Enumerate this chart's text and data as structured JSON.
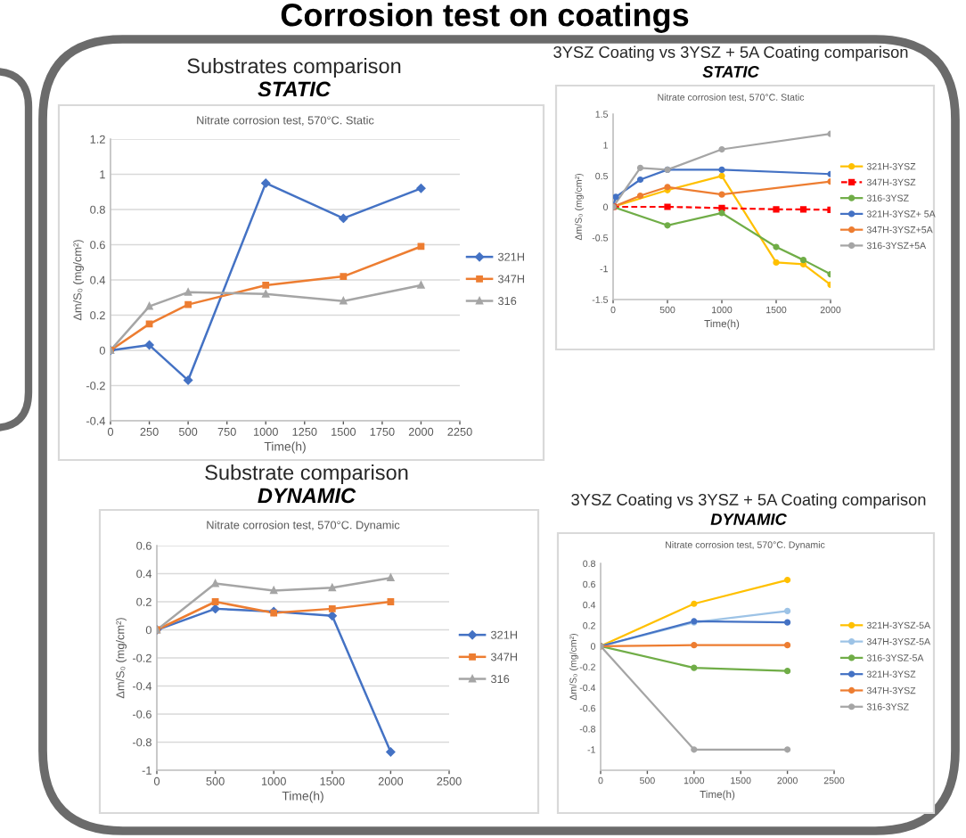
{
  "chart_data": [
    {
      "type": "other",
      "title": "Corrosion test on coatings"
    },
    {
      "type": "line",
      "title": "Substrates comparison",
      "subtitle": "STATIC",
      "annotations": [
        "Nitrate corrosion test, 570°C. Static"
      ],
      "xlabel": "Time(h)",
      "ylabel": "Δm/S₀ (mg/cm²)",
      "x": [
        0,
        250,
        500,
        1000,
        1500,
        2000
      ],
      "series": [
        {
          "name": "321H",
          "color": "#4472c4",
          "marker": "diamond",
          "values": [
            0,
            0.03,
            -0.17,
            0.95,
            0.75,
            0.92
          ]
        },
        {
          "name": "347H",
          "color": "#ed7d31",
          "marker": "square",
          "values": [
            0,
            0.15,
            0.26,
            0.37,
            0.42,
            0.59
          ]
        },
        {
          "name": "316",
          "color": "#a5a5a5",
          "marker": "triangle",
          "values": [
            0,
            0.25,
            0.33,
            0.32,
            0.28,
            0.37
          ]
        }
      ],
      "xlim": [
        0,
        2250
      ],
      "xticks": [
        0,
        250,
        500,
        750,
        1000,
        1250,
        1500,
        1750,
        2000,
        2250
      ],
      "ylim": [
        -0.4,
        1.2
      ],
      "yticks": [
        -0.4,
        -0.2,
        0,
        0.2,
        0.4,
        0.6,
        0.8,
        1,
        1.2
      ],
      "grid": "y",
      "legend": "right"
    },
    {
      "type": "line",
      "title": "3YSZ Coating vs 3YSZ + 5A Coating comparison",
      "subtitle": "STATIC",
      "annotations": [
        "Nitrate corrosion test, 570°C. Static"
      ],
      "xlabel": "Time(h)",
      "ylabel": "Δm/S₀ (mg/cm²)",
      "series": [
        {
          "name": "321H-3YSZ",
          "color": "#ffc000",
          "marker": "circle",
          "x": [
            0,
            500,
            1000,
            1500,
            1750,
            2000
          ],
          "values": [
            0,
            0.27,
            0.5,
            -0.9,
            -0.93,
            -1.26
          ]
        },
        {
          "name": "347H-3YSZ",
          "color": "#ff0000",
          "marker": "square",
          "line_style": "dashed",
          "x": [
            0,
            500,
            1000,
            1500,
            1750,
            2000
          ],
          "values": [
            0,
            0,
            -0.02,
            -0.04,
            -0.04,
            -0.05
          ]
        },
        {
          "name": "316-3YSZ",
          "color": "#70ad47",
          "marker": "circle",
          "x": [
            0,
            500,
            1000,
            1500,
            1750,
            2000
          ],
          "values": [
            0,
            -0.3,
            -0.1,
            -0.65,
            -0.86,
            -1.09
          ]
        },
        {
          "name": "321H-3YSZ+ 5A",
          "color": "#4472c4",
          "marker": "circle",
          "x": [
            0,
            25,
            250,
            500,
            1000,
            2000
          ],
          "values": [
            0,
            0.16,
            0.44,
            0.6,
            0.6,
            0.53
          ]
        },
        {
          "name": "347H-3YSZ+5A",
          "color": "#ed7d31",
          "marker": "circle",
          "x": [
            0,
            250,
            500,
            1000,
            2000
          ],
          "values": [
            0,
            0.18,
            0.32,
            0.2,
            0.41
          ]
        },
        {
          "name": "316-3YSZ+5A",
          "color": "#a5a5a5",
          "marker": "circle",
          "x": [
            0,
            250,
            500,
            1000,
            2000
          ],
          "values": [
            0,
            0.63,
            0.6,
            0.93,
            1.18
          ]
        }
      ],
      "xlim": [
        0,
        2000
      ],
      "xticks": [
        0,
        500,
        1000,
        1500,
        2000
      ],
      "ylim": [
        -1.5,
        1.5
      ],
      "yticks": [
        -1.5,
        -1,
        -0.5,
        0,
        0.5,
        1,
        1.5
      ],
      "legend": "right"
    },
    {
      "type": "line",
      "title": "Substrate comparison",
      "subtitle": "DYNAMIC",
      "annotations": [
        "Nitrate corrosion test, 570°C. Dynamic"
      ],
      "xlabel": "Time(h)",
      "ylabel": "Δm/S₀ (mg/cm²)",
      "x": [
        0,
        500,
        1000,
        1500,
        2000
      ],
      "series": [
        {
          "name": "321H",
          "color": "#4472c4",
          "marker": "diamond",
          "values": [
            0,
            0.15,
            0.13,
            0.1,
            -0.87
          ]
        },
        {
          "name": "347H",
          "color": "#ed7d31",
          "marker": "square",
          "values": [
            0,
            0.2,
            0.12,
            0.15,
            0.2
          ]
        },
        {
          "name": "316",
          "color": "#a5a5a5",
          "marker": "triangle",
          "values": [
            0,
            0.33,
            0.28,
            0.3,
            0.37
          ]
        }
      ],
      "xlim": [
        0,
        2500
      ],
      "xticks": [
        0,
        500,
        1000,
        1500,
        2000,
        2500
      ],
      "ylim": [
        -1,
        0.6
      ],
      "yticks": [
        -1,
        -0.8,
        -0.6,
        -0.4,
        -0.2,
        0,
        0.2,
        0.4,
        0.6
      ],
      "grid": "y",
      "legend": "right"
    },
    {
      "type": "line",
      "title": "3YSZ Coating vs 3YSZ + 5A Coating comparison",
      "subtitle": "DYNAMIC",
      "annotations": [
        "Nitrate corrosion test, 570°C. Dynamic"
      ],
      "xlabel": "Time(h)",
      "ylabel": "Δm/S₀ (mg/cm²)",
      "x": [
        0,
        1000,
        2000
      ],
      "series": [
        {
          "name": "321H-3YSZ-5A",
          "color": "#ffc000",
          "marker": "circle",
          "values": [
            0,
            0.41,
            0.64
          ]
        },
        {
          "name": "347H-3YSZ-5A",
          "color": "#9dc3e6",
          "marker": "circle",
          "values": [
            0,
            0.23,
            0.34
          ]
        },
        {
          "name": "316-3YSZ-5A",
          "color": "#70ad47",
          "marker": "circle",
          "values": [
            0,
            -0.21,
            -0.24
          ]
        },
        {
          "name": "321H-3YSZ",
          "color": "#4472c4",
          "marker": "circle",
          "values": [
            0,
            0.24,
            0.23
          ]
        },
        {
          "name": "347H-3YSZ",
          "color": "#ed7d31",
          "marker": "circle",
          "values": [
            0,
            0.01,
            0.01
          ]
        },
        {
          "name": "316-3YSZ",
          "color": "#a5a5a5",
          "marker": "circle",
          "values": [
            0,
            -1.0,
            -1.0
          ]
        }
      ],
      "xlim": [
        0,
        2500
      ],
      "xticks": [
        0,
        500,
        1000,
        1500,
        2000,
        2500
      ],
      "ylim": [
        -1.2,
        0.8
      ],
      "yticks": [
        -1,
        -0.8,
        -0.6,
        -0.4,
        -0.2,
        0,
        0.2,
        0.4,
        0.6,
        0.8
      ],
      "legend": "right"
    }
  ]
}
